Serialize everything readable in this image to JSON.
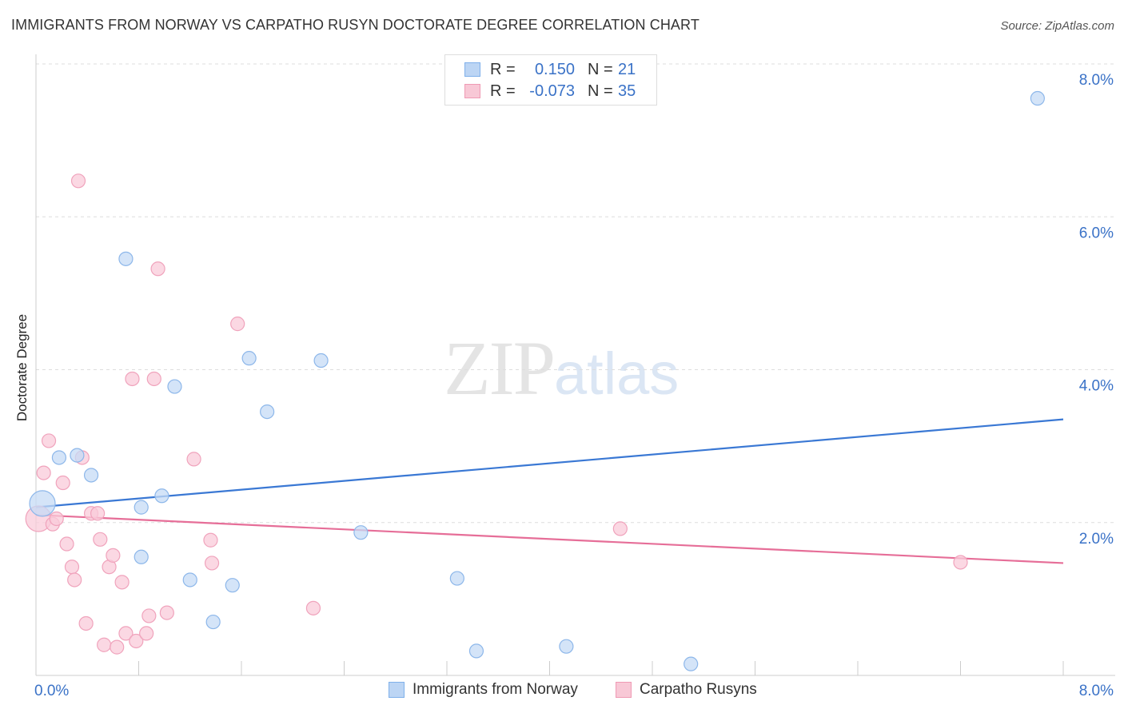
{
  "title": "IMMIGRANTS FROM NORWAY VS CARPATHO RUSYN DOCTORATE DEGREE CORRELATION CHART",
  "source": "Source: ZipAtlas.com",
  "watermark": {
    "zip": "ZIP",
    "atlas": "atlas"
  },
  "legend": {
    "rows": [
      {
        "r_label": "R =",
        "r_value": "0.150",
        "n_label": "N =",
        "n_value": "21",
        "color": "#7fb0ea",
        "fill": "#bcd5f4"
      },
      {
        "r_label": "R =",
        "r_value": "-0.073",
        "n_label": "N =",
        "n_value": "35",
        "color": "#ef9ab4",
        "fill": "#f8c8d6"
      }
    ]
  },
  "chart_data": {
    "type": "scatter",
    "title": "IMMIGRANTS FROM NORWAY VS CARPATHO RUSYN DOCTORATE DEGREE CORRELATION CHART",
    "xlabel": "",
    "ylabel": "Doctorate Degree",
    "xlim": [
      0,
      8
    ],
    "ylim": [
      0,
      8
    ],
    "x_tick_labels": [
      "0.0%",
      "8.0%"
    ],
    "y_ticks": [
      2,
      4,
      6,
      8
    ],
    "y_tick_labels": [
      "2.0%",
      "4.0%",
      "6.0%",
      "8.0%"
    ],
    "grid": true,
    "series": [
      {
        "name": "Immigrants from Norway",
        "color": "#3a78d4",
        "point_fill": "#c5dbf5",
        "point_stroke": "#8db7ea",
        "trend": {
          "x0": 0,
          "y0": 2.2,
          "x1": 8,
          "y1": 3.35
        },
        "points": [
          [
            0.05,
            2.25,
            "large"
          ],
          [
            0.18,
            2.85
          ],
          [
            0.32,
            2.88
          ],
          [
            0.43,
            2.62
          ],
          [
            0.7,
            5.45
          ],
          [
            0.82,
            1.55
          ],
          [
            0.82,
            2.2
          ],
          [
            0.98,
            2.35
          ],
          [
            1.08,
            3.78
          ],
          [
            1.2,
            1.25
          ],
          [
            1.38,
            0.7
          ],
          [
            1.53,
            1.18
          ],
          [
            1.66,
            4.15
          ],
          [
            1.8,
            3.45
          ],
          [
            2.22,
            4.12
          ],
          [
            2.53,
            1.87
          ],
          [
            3.28,
            1.27
          ],
          [
            3.43,
            0.32
          ],
          [
            4.13,
            0.38
          ],
          [
            5.1,
            0.15
          ],
          [
            7.8,
            7.55
          ]
        ]
      },
      {
        "name": "Carpatho Rusyns",
        "color": "#e66e98",
        "point_fill": "#f9cbd9",
        "point_stroke": "#f0a3bc",
        "trend": {
          "x0": 0,
          "y0": 2.1,
          "x1": 8,
          "y1": 1.47
        },
        "points": [
          [
            0.02,
            2.05,
            "large"
          ],
          [
            0.06,
            2.65
          ],
          [
            0.1,
            3.07
          ],
          [
            0.13,
            1.98
          ],
          [
            0.16,
            2.05
          ],
          [
            0.21,
            2.52
          ],
          [
            0.24,
            1.72
          ],
          [
            0.28,
            1.42
          ],
          [
            0.3,
            1.25
          ],
          [
            0.33,
            6.47
          ],
          [
            0.36,
            2.85
          ],
          [
            0.39,
            0.68
          ],
          [
            0.43,
            2.12
          ],
          [
            0.48,
            2.12
          ],
          [
            0.5,
            1.78
          ],
          [
            0.53,
            0.4
          ],
          [
            0.57,
            1.42
          ],
          [
            0.6,
            1.57
          ],
          [
            0.63,
            0.37
          ],
          [
            0.67,
            1.22
          ],
          [
            0.7,
            0.55
          ],
          [
            0.75,
            3.88
          ],
          [
            0.78,
            0.45
          ],
          [
            0.86,
            0.55
          ],
          [
            0.88,
            0.78
          ],
          [
            0.92,
            3.88
          ],
          [
            0.95,
            5.32
          ],
          [
            1.02,
            0.82
          ],
          [
            1.23,
            2.83
          ],
          [
            1.36,
            1.77
          ],
          [
            1.37,
            1.47
          ],
          [
            1.57,
            4.6
          ],
          [
            2.16,
            0.88
          ],
          [
            4.55,
            1.92
          ],
          [
            7.2,
            1.48
          ]
        ]
      }
    ]
  }
}
